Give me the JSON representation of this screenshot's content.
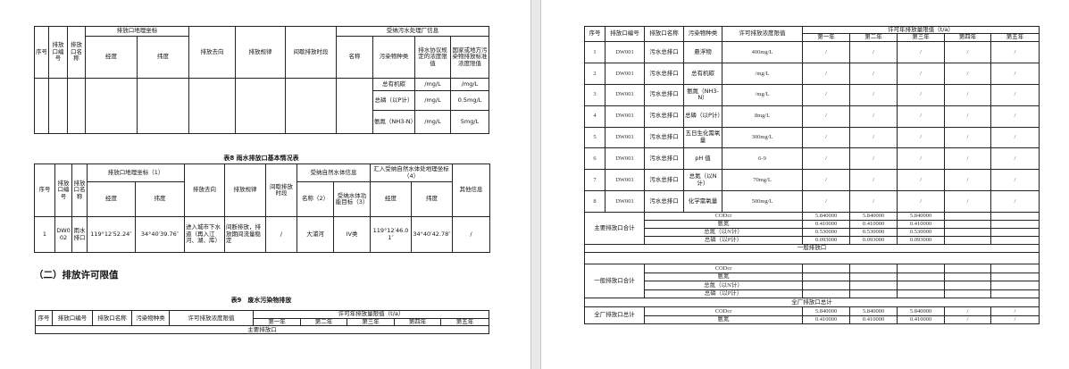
{
  "table_prev": {
    "headers": {
      "seq": "序号",
      "outlet_code": "排放口编号",
      "outlet_name": "排放口名称",
      "geo": "排放口地理坐标",
      "lon": "经度",
      "lat": "纬度",
      "direction": "排放去向",
      "pattern": "排放规律",
      "intermittent": "间歇排放时段",
      "plant_info": "受纳污水处理厂信息",
      "name": "名称",
      "pollutant": "污染物种类",
      "agreement_limit": "排水协议规定的浓度限值",
      "standard_limit": "国家或地方污染物排放标准浓度限值"
    },
    "rows": [
      {
        "pollutant": "总有机碳",
        "agreement": "/mg/L",
        "standard": "/mg/L"
      },
      {
        "pollutant": "总磷（以P计）",
        "agreement": "/mg/L",
        "standard": "0.5mg/L"
      },
      {
        "pollutant": "氨氮（NH3-N）",
        "agreement": "/mg/L",
        "standard": "5mg/L"
      }
    ]
  },
  "table8": {
    "title": "表8 雨水排放口基本情况表",
    "headers": {
      "seq": "序号",
      "outlet_code": "排放口编号",
      "outlet_name": "排放口名称",
      "geo": "排放口地理坐标（1）",
      "lon": "经度",
      "lat": "纬度",
      "direction": "排放去向",
      "pattern": "排放规律",
      "intermittent": "间歇排放时段",
      "water_info": "受纳自然水体信息",
      "water_name": "名称（2）",
      "water_target": "受纳水体功能目标（3）",
      "inlet_geo": "汇入受纳自然水体处地理坐标（4）",
      "inlet_lon": "经度",
      "inlet_lat": "纬度",
      "other": "其他信息"
    },
    "row": {
      "seq": "1",
      "outlet_code": "DW002",
      "outlet_name": "雨水排口",
      "lon": "119°12′52.24″",
      "lat": "34°40′39.76″",
      "direction": "进入城市下水道（再入江河、湖、库）",
      "pattern": "间断排放，排放期间流量稳定",
      "intermittent": "/",
      "water_name": "大浦河",
      "water_target": "IV类",
      "inlet_lon": "119°12′46.01″",
      "inlet_lat": "34°40′42.78″",
      "other": "/"
    }
  },
  "section_heading": "（二）排放许可限值",
  "table9": {
    "title": "表9　废水污染物排放",
    "headers": {
      "seq": "序号",
      "outlet_code": "排放口编号",
      "outlet_name": "排放口名称",
      "pollutant": "污染物种类",
      "conc_limit": "许可排放浓度限值",
      "annual_limit": "许可年排放量限值（t/a）",
      "years": [
        "第一年",
        "第二年",
        "第三年",
        "第四年",
        "第五年"
      ]
    },
    "main_outlet": "主要排放口"
  },
  "table9_cont": {
    "headers": {
      "seq": "序号",
      "outlet_code": "排放口编号",
      "outlet_name": "排放口名称",
      "pollutant": "污染物种类",
      "conc_limit": "许可排放浓度限值",
      "annual_limit": "许可年排放量限值（t/a）",
      "years": [
        "第一年",
        "第二年",
        "第三年",
        "第四年",
        "第五年"
      ]
    },
    "rows": [
      {
        "seq": "1",
        "code": "DW001",
        "name": "污水总排口",
        "pollutant": "悬浮物",
        "limit": "400mg/L",
        "years": [
          "/",
          "/",
          "/",
          "/",
          "/"
        ]
      },
      {
        "seq": "2",
        "code": "DW001",
        "name": "污水总排口",
        "pollutant": "总有机碳",
        "limit": "/mg/L",
        "years": [
          "/",
          "/",
          "/",
          "/",
          "/"
        ]
      },
      {
        "seq": "3",
        "code": "DW001",
        "name": "污水总排口",
        "pollutant": "氨氮（NH3-N）",
        "limit": "/mg/L",
        "years": [
          "/",
          "/",
          "/",
          "/",
          "/"
        ]
      },
      {
        "seq": "4",
        "code": "DW001",
        "name": "污水总排口",
        "pollutant": "总磷（以P计）",
        "limit": "8mg/L",
        "years": [
          "/",
          "/",
          "/",
          "/",
          "/"
        ]
      },
      {
        "seq": "5",
        "code": "DW001",
        "name": "污水总排口",
        "pollutant": "五日生化需氧量",
        "limit": "300mg/L",
        "years": [
          "/",
          "/",
          "/",
          "/",
          "/"
        ]
      },
      {
        "seq": "6",
        "code": "DW001",
        "name": "污水总排口",
        "pollutant": "pH 值",
        "limit": "6-9",
        "years": [
          "/",
          "/",
          "/",
          "/",
          "/"
        ]
      },
      {
        "seq": "7",
        "code": "DW001",
        "name": "污水总排口",
        "pollutant": "总氮（以N计）",
        "limit": "70mg/L",
        "years": [
          "/",
          "/",
          "/",
          "/",
          "/"
        ]
      },
      {
        "seq": "8",
        "code": "DW001",
        "name": "污水总排口",
        "pollutant": "化学需氧量",
        "limit": "500mg/L",
        "years": [
          "/",
          "/",
          "/",
          "/",
          "/"
        ]
      }
    ],
    "main_total": {
      "label": "主要排放口合计",
      "rows": [
        {
          "pollutant": "CODcr",
          "years": [
            "5.840000",
            "5.840000",
            "5.840000",
            "",
            ""
          ]
        },
        {
          "pollutant": "氨氮",
          "years": [
            "0.410000",
            "0.410000",
            "0.410000",
            "",
            ""
          ]
        },
        {
          "pollutant": "总氮（以N计）",
          "years": [
            "0.530000",
            "0.530000",
            "0.530000",
            "",
            ""
          ]
        },
        {
          "pollutant": "总磷（以P计）",
          "years": [
            "0.093000",
            "0.093000",
            "0.093000",
            "",
            ""
          ]
        }
      ]
    },
    "general_outlet": "一般排放口",
    "general_total": {
      "label": "一般排放口合计",
      "rows": [
        {
          "pollutant": "CODcr",
          "years": [
            "",
            "",
            "",
            "",
            ""
          ]
        },
        {
          "pollutant": "氨氮",
          "years": [
            "",
            "",
            "",
            "",
            ""
          ]
        },
        {
          "pollutant": "总氮（以N计）",
          "years": [
            "",
            "",
            "",
            "",
            ""
          ]
        },
        {
          "pollutant": "总磷（以P计）",
          "years": [
            "",
            "",
            "",
            "",
            ""
          ]
        }
      ]
    },
    "plant_total_header": "全厂排放口总计",
    "plant_total": {
      "label": "全厂排放口总计",
      "rows": [
        {
          "pollutant": "CODcr",
          "years": [
            "5.840000",
            "5.840000",
            "5.840000",
            "/",
            "/"
          ]
        },
        {
          "pollutant": "氨氮",
          "years": [
            "0.410000",
            "0.410000",
            "0.410000",
            "/",
            "/"
          ]
        }
      ]
    }
  }
}
